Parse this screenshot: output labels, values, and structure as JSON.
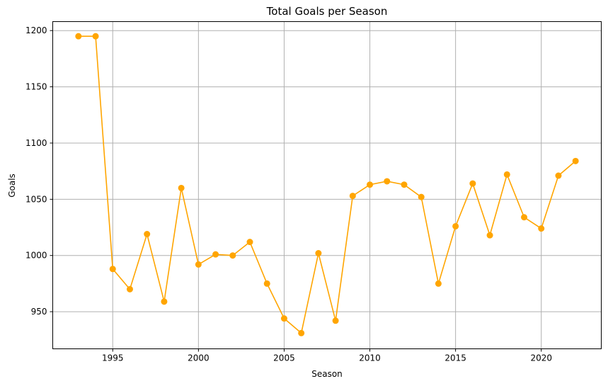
{
  "chart_data": {
    "type": "line",
    "title": "Total Goals per Season",
    "xlabel": "Season",
    "ylabel": "Goals",
    "xlim": [
      1991.5,
      2023.5
    ],
    "ylim": [
      917,
      1208
    ],
    "xticks": [
      1995,
      2000,
      2005,
      2010,
      2015,
      2020
    ],
    "yticks": [
      950,
      1000,
      1050,
      1100,
      1150,
      1200
    ],
    "grid": true,
    "color": "#ffa500",
    "x": [
      1993,
      1994,
      1995,
      1996,
      1997,
      1998,
      1999,
      2000,
      2001,
      2002,
      2003,
      2004,
      2005,
      2006,
      2007,
      2008,
      2009,
      2010,
      2011,
      2012,
      2013,
      2014,
      2015,
      2016,
      2017,
      2018,
      2019,
      2020,
      2021,
      2022
    ],
    "y": [
      1195,
      1195,
      988,
      970,
      1019,
      959,
      1060,
      992,
      1001,
      1000,
      1012,
      975,
      944,
      931,
      1002,
      942,
      1053,
      1063,
      1066,
      1063,
      1052,
      975,
      1026,
      1064,
      1018,
      1072,
      1034,
      1024,
      1071,
      1084
    ]
  }
}
